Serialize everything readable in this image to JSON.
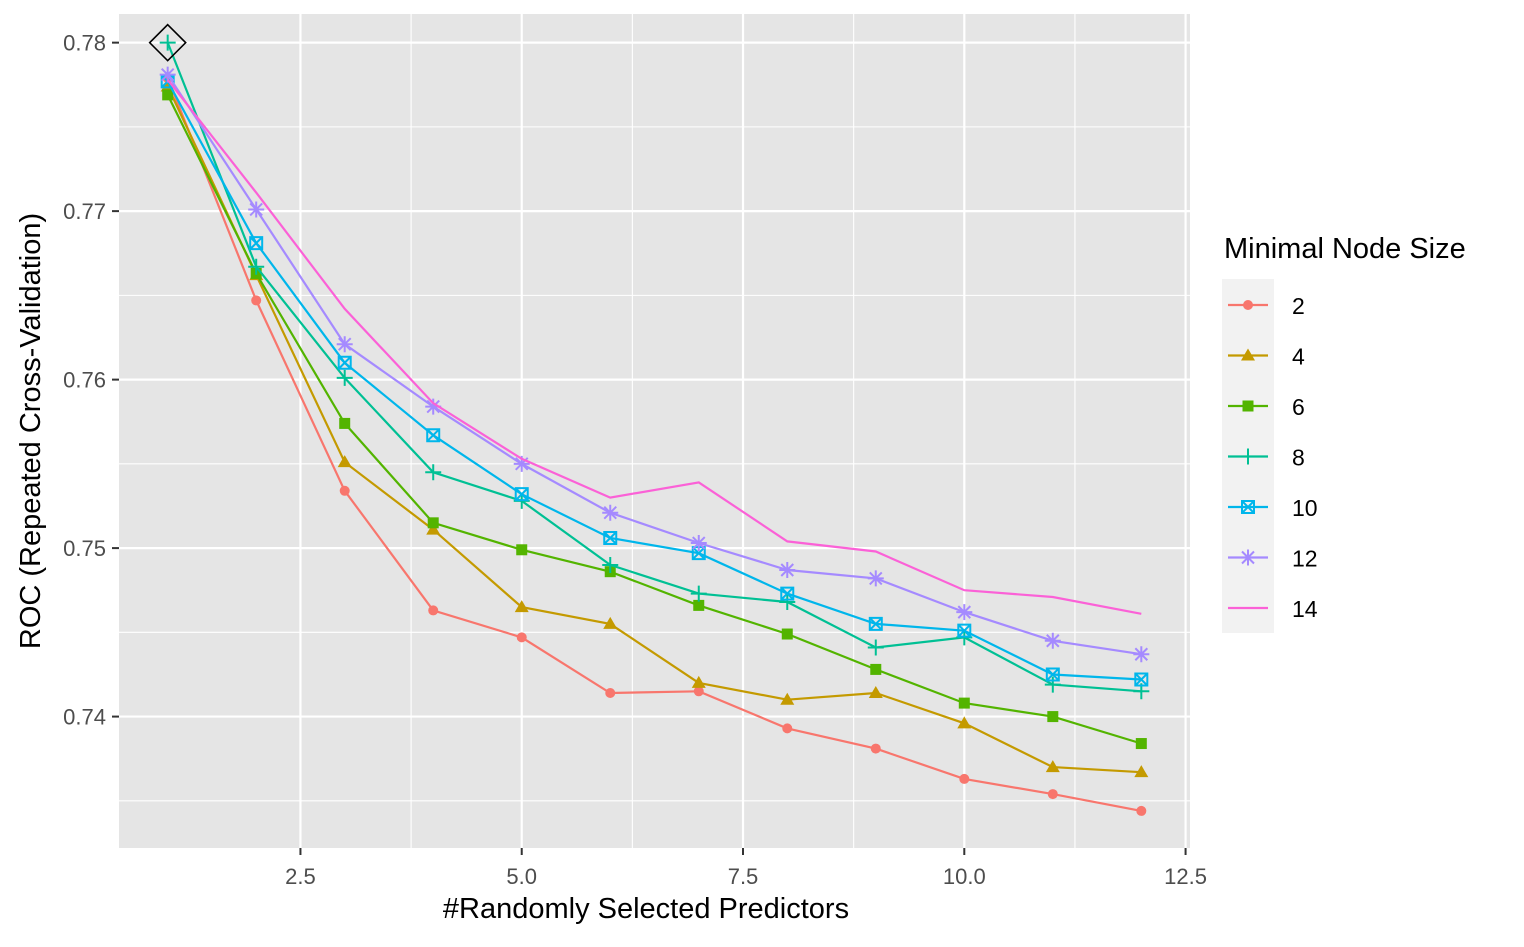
{
  "chart_data": {
    "type": "line",
    "xlabel": "#Randomly Selected Predictors",
    "ylabel": "ROC (Repeated Cross-Validation)",
    "xlim": [
      0.45,
      12.55
    ],
    "ylim": [
      0.7322,
      0.7817
    ],
    "x_ticks": [
      2.5,
      5.0,
      7.5,
      10.0,
      12.5
    ],
    "x_tick_labels": [
      "2.5",
      "5.0",
      "7.5",
      "10.0",
      "12.5"
    ],
    "y_ticks": [
      0.74,
      0.75,
      0.76,
      0.77,
      0.78
    ],
    "y_tick_labels": [
      "0.74",
      "0.75",
      "0.76",
      "0.77",
      "0.78"
    ],
    "grid": true,
    "background": "#e5e5e5",
    "legend": {
      "title": "Minimal Node Size",
      "placement": "right"
    },
    "x": [
      1,
      2,
      3,
      4,
      5,
      6,
      7,
      8,
      9,
      10,
      11,
      12
    ],
    "series": [
      {
        "name": "2",
        "color": "#f8766d",
        "marker": "circle",
        "values": [
          0.7779,
          0.7647,
          0.7534,
          0.7463,
          0.7447,
          0.7414,
          0.7415,
          0.7393,
          0.7381,
          0.7363,
          0.7354,
          0.7344
        ]
      },
      {
        "name": "4",
        "color": "#c49a00",
        "marker": "triangle",
        "values": [
          0.7774,
          0.7662,
          0.7551,
          0.7511,
          0.7465,
          0.7455,
          0.742,
          0.741,
          0.7414,
          0.7396,
          0.737,
          0.7367
        ]
      },
      {
        "name": "6",
        "color": "#53b400",
        "marker": "square",
        "values": [
          0.7769,
          0.7663,
          0.7574,
          0.7515,
          0.7499,
          0.7486,
          0.7466,
          0.7449,
          0.7428,
          0.7408,
          0.74,
          0.7384
        ]
      },
      {
        "name": "8",
        "color": "#00c094",
        "marker": "plus",
        "values": [
          0.78,
          0.7667,
          0.7601,
          0.7545,
          0.7528,
          0.749,
          0.7473,
          0.7468,
          0.7441,
          0.7447,
          0.7419,
          0.7415
        ]
      },
      {
        "name": "10",
        "color": "#00b6eb",
        "marker": "square-x",
        "values": [
          0.7777,
          0.7681,
          0.761,
          0.7567,
          0.7532,
          0.7506,
          0.7497,
          0.7473,
          0.7455,
          0.7451,
          0.7425,
          0.7422
        ]
      },
      {
        "name": "12",
        "color": "#a58aff",
        "marker": "asterisk",
        "values": [
          0.7781,
          0.7701,
          0.7621,
          0.7584,
          0.755,
          0.7521,
          0.7503,
          0.7487,
          0.7482,
          0.7462,
          0.7445,
          0.7437
        ]
      },
      {
        "name": "14",
        "color": "#fb61d7",
        "marker": "none",
        "values": [
          0.7778,
          0.7711,
          0.7642,
          0.7586,
          0.7553,
          0.753,
          0.7539,
          0.7504,
          0.7498,
          0.7475,
          0.7471,
          0.7461
        ]
      }
    ],
    "best_point": {
      "x": 1,
      "y": 0.78,
      "marker": "diamond"
    }
  }
}
